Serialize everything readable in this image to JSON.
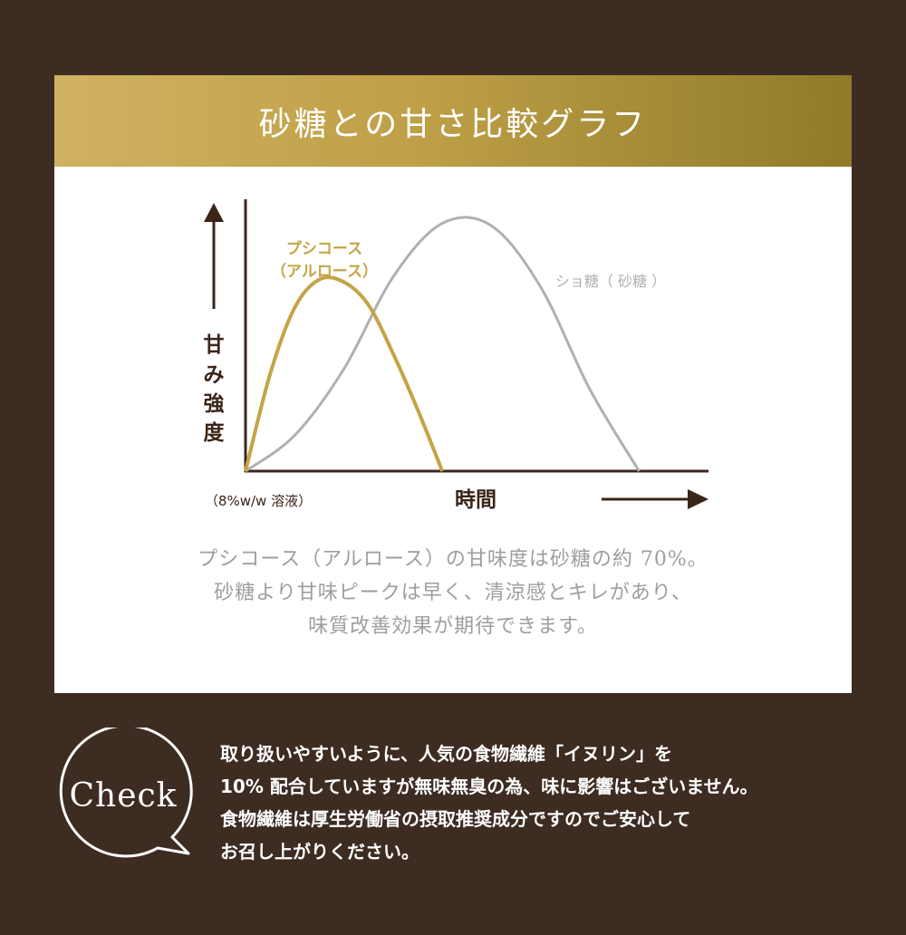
{
  "card": {
    "title": "砂糖との甘さ比較グラフ"
  },
  "chart_data": {
    "type": "line",
    "title": "",
    "xlabel": "時間",
    "ylabel": "甘み強度",
    "ylabel_chars": [
      "甘",
      "み",
      "強",
      "度"
    ],
    "x_note": "（8%w/w 溶液）",
    "grid": false,
    "xlim": [
      0,
      100
    ],
    "ylim": [
      0,
      100
    ],
    "series": [
      {
        "name": "プシコース（アルロース）",
        "label_lines": [
          "プシコース",
          "（アルロース）"
        ],
        "color": "#c4a446",
        "x": [
          0,
          5,
          10,
          15,
          20,
          25,
          30,
          35,
          40
        ],
        "values": [
          0,
          38,
          64,
          75,
          74,
          65,
          46,
          24,
          0
        ]
      },
      {
        "name": "ショ糖（砂糖）",
        "label_lines": [
          "ショ糖（ 砂糖 ）"
        ],
        "color": "#b0b0b0",
        "x": [
          0,
          10,
          20,
          30,
          40,
          50,
          60,
          70,
          80
        ],
        "values": [
          0,
          14,
          40,
          76,
          97,
          96,
          72,
          32,
          0
        ]
      }
    ]
  },
  "description": [
    "プシコース（アルロース）の甘味度は砂糖の約 70%。",
    "砂糖より甘味ピークは早く、清涼感とキレがあり、",
    "味質改善効果が期待できます。"
  ],
  "check": {
    "badge": "Check",
    "lines": [
      "取り扱いやすいように、人気の食物繊維「イヌリン」を",
      "10% 配合していますが無味無臭の為、味に影響はございません。",
      "食物繊維は厚生労働省の摂取推奨成分ですのでご安心して",
      "お召し上がりください。"
    ]
  },
  "colors": {
    "background": "#3d2c22",
    "axis": "#3b2518",
    "gold": "#c4a446",
    "gray": "#b0b0b0"
  }
}
